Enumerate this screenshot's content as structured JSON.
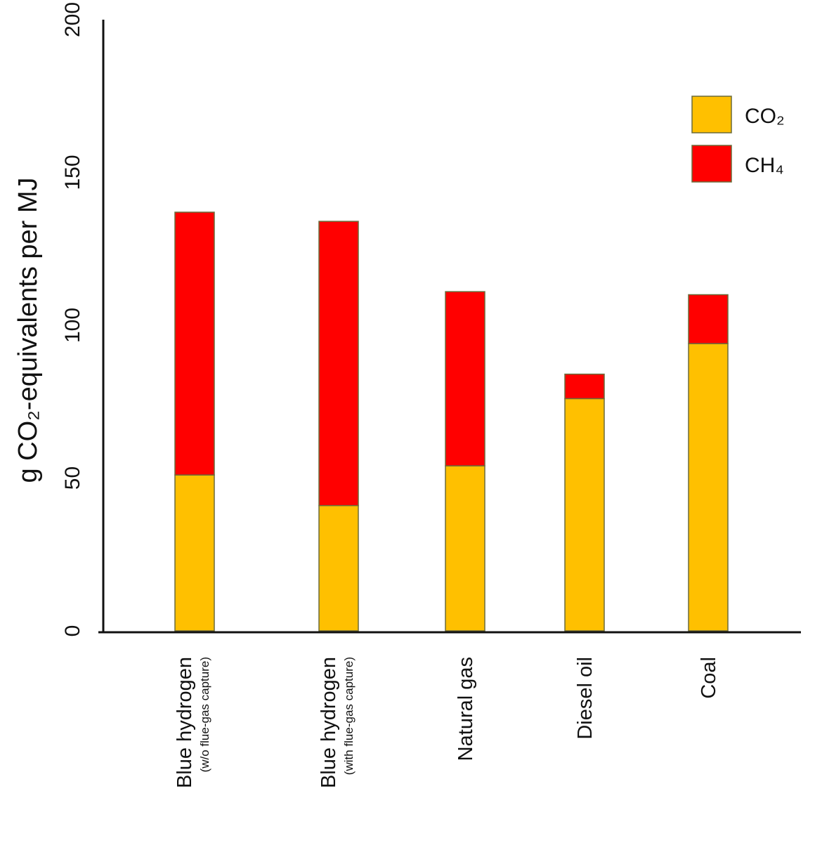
{
  "chart_data": {
    "type": "bar",
    "stacked": true,
    "categories": [
      {
        "main": "Blue hydrogen",
        "sub": "(w/o flue-gas capture)"
      },
      {
        "main": "Blue hydrogen",
        "sub": "(with flue-gas capture)"
      },
      {
        "main": "Natural gas",
        "sub": ""
      },
      {
        "main": "Diesel oil",
        "sub": ""
      },
      {
        "main": "Coal",
        "sub": ""
      }
    ],
    "series": [
      {
        "name": "CO₂",
        "color": "#FFC000",
        "values": [
          51,
          41,
          54,
          76,
          94
        ]
      },
      {
        "name": "CH₄",
        "color": "#FF0000",
        "values": [
          86,
          93,
          57,
          8,
          16
        ]
      }
    ],
    "ylabel": "g CO₂-equivalents per MJ",
    "xlabel": "",
    "title": "",
    "ylim": [
      0,
      200
    ],
    "yticks": [
      0,
      50,
      100,
      150,
      200
    ],
    "legend_position": "top-right",
    "grid": false
  }
}
